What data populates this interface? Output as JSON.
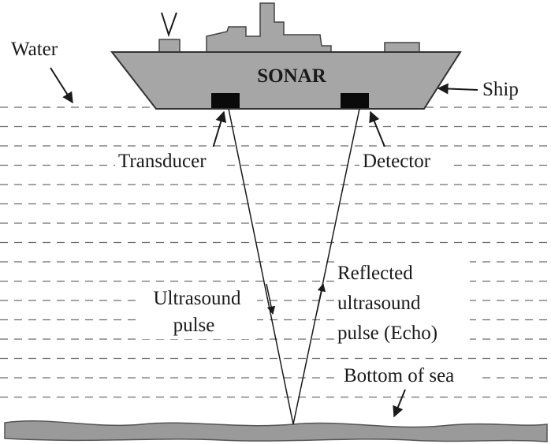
{
  "labels": {
    "water": "Water",
    "ship": "Ship",
    "sonar": "SONAR",
    "transducer": "Transducer",
    "detector": "Detector",
    "ultrasound_line1": "Ultrasound",
    "ultrasound_line2": "pulse",
    "reflected_line1": "Reflected",
    "reflected_line2": "ultrasound",
    "reflected_line3": "pulse (Echo)",
    "bottom": "Bottom of sea"
  },
  "colors": {
    "ship_fill": "#a6a6a6",
    "ship_stroke": "#333333",
    "sensor": "#0a0a0a",
    "water_lines": "#6e6e6e",
    "seabed_fill": "#9a9a9a",
    "ink": "#1a1a1a"
  }
}
